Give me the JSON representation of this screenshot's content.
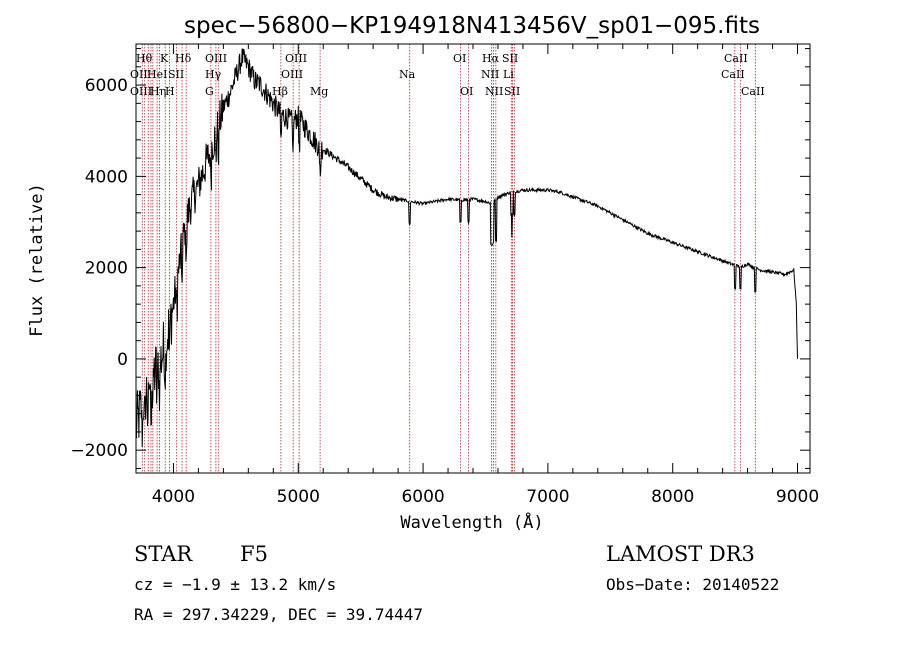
{
  "chart_data": {
    "type": "line",
    "title": "spec−56800−KP194918N413456V_sp01−095.fits",
    "xlabel": "Wavelength (Å)",
    "ylabel": "Flux (relative)",
    "xlim": [
      3700,
      9100
    ],
    "ylim": [
      -2500,
      6900
    ],
    "xticks": [
      4000,
      5000,
      6000,
      7000,
      8000,
      9000
    ],
    "xtick_labels": [
      "4000",
      "5000",
      "6000",
      "7000",
      "8000",
      "9000"
    ],
    "yticks": [
      -2000,
      0,
      2000,
      4000,
      6000
    ],
    "ytick_labels": [
      "−2000",
      "0",
      "2000",
      "4000",
      "6000"
    ],
    "grid": false,
    "series": [
      {
        "name": "flux",
        "x": [
          3700,
          3750,
          3800,
          3850,
          3900,
          3950,
          4000,
          4050,
          4100,
          4150,
          4200,
          4250,
          4300,
          4350,
          4400,
          4450,
          4500,
          4550,
          4600,
          4650,
          4700,
          4750,
          4800,
          4850,
          4900,
          4950,
          5000,
          5050,
          5100,
          5150,
          5200,
          5300,
          5400,
          5500,
          5600,
          5700,
          5800,
          5900,
          6000,
          6100,
          6200,
          6300,
          6400,
          6500,
          6550,
          6600,
          6650,
          6700,
          6800,
          6900,
          7000,
          7100,
          7200,
          7300,
          7400,
          7500,
          7600,
          7700,
          7800,
          7900,
          8000,
          8100,
          8200,
          8300,
          8400,
          8500,
          8550,
          8600,
          8650,
          8700,
          8800,
          8900,
          8970,
          8990,
          9000
        ],
        "y": [
          -1500,
          -1000,
          -600,
          -300,
          0,
          500,
          1200,
          2100,
          3000,
          3500,
          3800,
          4200,
          4600,
          5000,
          5500,
          5800,
          6200,
          6600,
          6400,
          6100,
          6000,
          5800,
          5600,
          5400,
          5300,
          5200,
          5300,
          5100,
          4900,
          4700,
          4600,
          4400,
          4200,
          3950,
          3700,
          3550,
          3500,
          3450,
          3400,
          3450,
          3500,
          3480,
          3500,
          3450,
          3400,
          3550,
          3600,
          3650,
          3700,
          3700,
          3700,
          3650,
          3550,
          3450,
          3350,
          3200,
          3050,
          2900,
          2750,
          2650,
          2550,
          2450,
          2350,
          2250,
          2150,
          2050,
          2020,
          2080,
          2000,
          1950,
          1900,
          1850,
          1950,
          1200,
          0
        ]
      }
    ],
    "absorption_features": [
      {
        "x": 3750
      },
      {
        "x": 3770
      },
      {
        "x": 3798
      },
      {
        "x": 3820
      },
      {
        "x": 3835
      },
      {
        "x": 3869
      },
      {
        "x": 3889
      },
      {
        "x": 3934,
        "label": "K"
      },
      {
        "x": 3968,
        "label": "H"
      },
      {
        "x": 4026,
        "label": "HeI"
      },
      {
        "x": 4069,
        "label": "SII"
      },
      {
        "x": 4102,
        "label": "Hδ"
      },
      {
        "x": 4300,
        "label": "G"
      },
      {
        "x": 4340,
        "label": "Hγ"
      },
      {
        "x": 4363
      },
      {
        "x": 4861,
        "label": "Hβ"
      },
      {
        "x": 4959
      },
      {
        "x": 5007
      },
      {
        "x": 5175,
        "label": "Mg"
      },
      {
        "x": 5893,
        "label": "Na"
      },
      {
        "x": 6300,
        "label": "OI"
      },
      {
        "x": 6364,
        "label": "OI"
      },
      {
        "x": 6548
      },
      {
        "x": 6563,
        "label": "Hα"
      },
      {
        "x": 6583
      },
      {
        "x": 6707
      },
      {
        "x": 6717
      },
      {
        "x": 6731
      },
      {
        "x": 8498
      },
      {
        "x": 8542
      },
      {
        "x": 8662
      }
    ],
    "line_labels": [
      "Hθ",
      "OII",
      "OIII",
      "Hη",
      "K",
      "HeI",
      "H",
      "Hδ",
      "SII",
      "OIII",
      "Hγ",
      "G",
      "Hβ",
      "OIII",
      "OIII",
      "Mg",
      "Na",
      "OI",
      "OI",
      "Hα",
      "NII",
      "NII",
      "SII",
      "Li",
      "SII",
      "CaII",
      "CaII",
      "CaII"
    ]
  },
  "info": {
    "object_class": "STAR",
    "subclass": "F5",
    "survey": "LAMOST DR3",
    "cz": "cz = −1.9 ± 13.2 km/s",
    "obs_date": "Obs−Date: 20140522",
    "coords": "RA = 297.34229, DEC =  39.74447"
  }
}
